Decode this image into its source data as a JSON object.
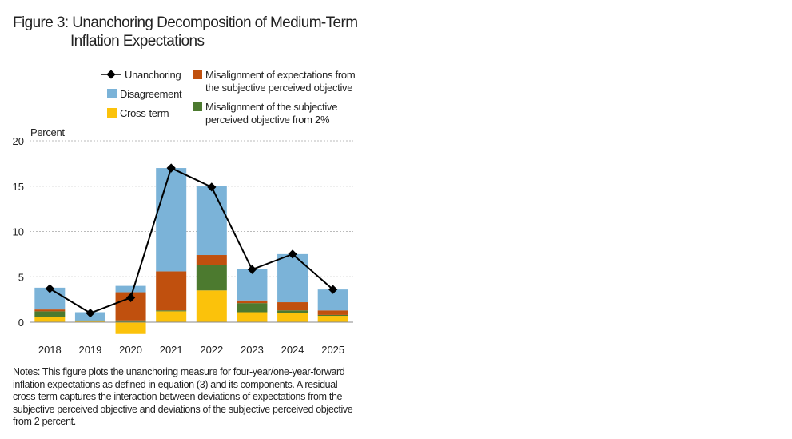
{
  "title_line1": "Figure 3: Unanchoring Decomposition of Medium-Term",
  "title_line2": "Inflation Expectations",
  "notes": "Notes: This figure plots the unanchoring measure for four-year/one-year-forward inflation expectations as defined in equation (3) and its components. A residual cross-term captures the interaction between deviations of expectations from the subjective perceived objective and deviations of the subjective perceived objective from 2 percent.",
  "colors": {
    "disagreement": "#7bb3d8",
    "misalignment_expectations": "#c0500e",
    "misalignment_objective": "#4c7a2f",
    "cross_term": "#fbc20b",
    "line": "#000000",
    "grid": "#bbbbbb"
  },
  "chart_data": {
    "type": "bar",
    "stacked": true,
    "ylabel": "Percent",
    "ylim": [
      0,
      20
    ],
    "yticks": [
      0,
      5,
      10,
      15,
      20
    ],
    "categories": [
      "2018",
      "2019",
      "2020",
      "2021",
      "2022",
      "2023",
      "2024",
      "2025"
    ],
    "legend": {
      "unanchoring": "Unanchoring",
      "disagreement": "Disagreement",
      "cross_term": "Cross-term",
      "misalignment_expectations_l1": "Misalignment of expectations from",
      "misalignment_expectations_l2": "the subjective perceived objective",
      "misalignment_objective_l1": "Misalignment of the subjective",
      "misalignment_objective_l2": "perceived objective from 2%"
    },
    "series": [
      {
        "name": "Cross-term",
        "color_key": "cross_term",
        "values": [
          0.6,
          0.1,
          -1.3,
          1.2,
          3.5,
          1.1,
          1.0,
          0.7
        ]
      },
      {
        "name": "Misalignment of the subjective perceived objective from 2%",
        "color_key": "misalignment_objective",
        "values": [
          0.6,
          0.1,
          0.2,
          0.1,
          2.8,
          1.0,
          0.3,
          0.1
        ]
      },
      {
        "name": "Misalignment of expectations from the subjective perceived objective",
        "color_key": "misalignment_expectations",
        "values": [
          0.2,
          0.0,
          3.1,
          4.3,
          1.1,
          0.3,
          0.9,
          0.5
        ]
      },
      {
        "name": "Disagreement",
        "color_key": "disagreement",
        "values": [
          2.4,
          0.9,
          0.7,
          11.4,
          7.6,
          3.5,
          5.3,
          2.3
        ]
      }
    ],
    "line": {
      "name": "Unanchoring",
      "values": [
        3.7,
        1.0,
        2.7,
        17.0,
        14.9,
        5.8,
        7.5,
        3.6
      ]
    }
  }
}
